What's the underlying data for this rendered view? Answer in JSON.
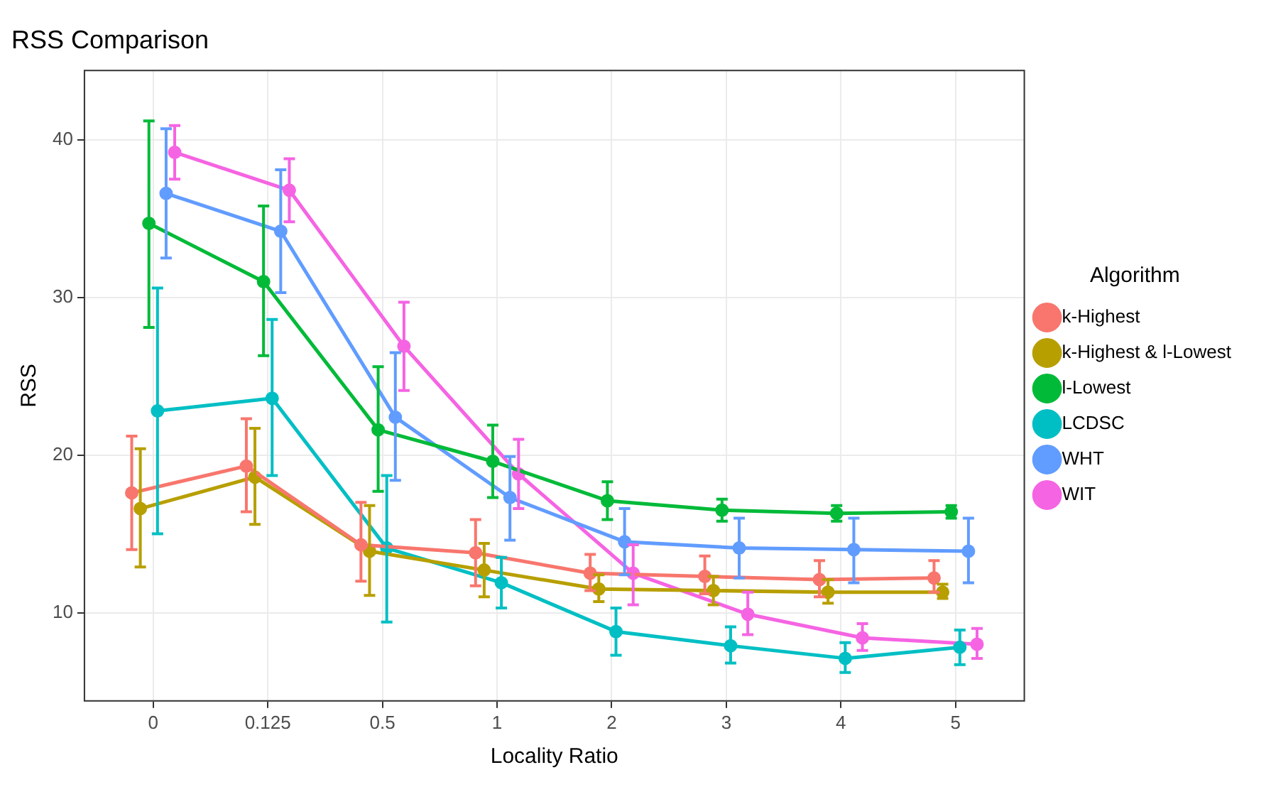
{
  "chart_data": {
    "type": "line",
    "title": "RSS Comparison",
    "xlabel": "Locality Ratio",
    "ylabel": "RSS",
    "legend_title": "Algorithm",
    "legend": "right",
    "grid": true,
    "marker": "circle",
    "line_style": "solid",
    "categories": [
      "0",
      "0.125",
      "0.5",
      "1",
      "2",
      "3",
      "4",
      "5"
    ],
    "ylim": [
      4.4,
      44.4
    ],
    "yticks": [
      10,
      20,
      30,
      40
    ],
    "series": [
      {
        "name": "k-Highest",
        "color": "#f8766d",
        "values": [
          17.6,
          19.3,
          14.3,
          13.8,
          12.5,
          12.3,
          12.1,
          12.2
        ],
        "errors": [
          [
            14.0,
            21.2
          ],
          [
            16.4,
            22.3
          ],
          [
            12.0,
            17.0
          ],
          [
            11.7,
            15.9
          ],
          [
            11.4,
            13.7
          ],
          [
            11.2,
            13.6
          ],
          [
            11.0,
            13.3
          ],
          [
            11.3,
            13.3
          ]
        ]
      },
      {
        "name": "k-Highest & l-Lowest",
        "color": "#b79f00",
        "values": [
          16.6,
          18.6,
          13.9,
          12.7,
          11.5,
          11.4,
          11.3,
          11.3
        ],
        "errors": [
          [
            12.9,
            20.4
          ],
          [
            15.6,
            21.7
          ],
          [
            11.1,
            16.8
          ],
          [
            11.0,
            14.4
          ],
          [
            10.7,
            12.4
          ],
          [
            10.5,
            12.3
          ],
          [
            10.6,
            12.1
          ],
          [
            10.9,
            11.8
          ]
        ]
      },
      {
        "name": "l-Lowest",
        "color": "#00ba38",
        "values": [
          34.7,
          31.0,
          21.6,
          19.6,
          17.1,
          16.5,
          16.3,
          16.4
        ],
        "errors": [
          [
            28.1,
            41.2
          ],
          [
            26.3,
            35.8
          ],
          [
            17.7,
            25.6
          ],
          [
            17.3,
            21.9
          ],
          [
            15.9,
            18.3
          ],
          [
            15.8,
            17.2
          ],
          [
            15.8,
            16.8
          ],
          [
            16.0,
            16.8
          ]
        ]
      },
      {
        "name": "LCDSC",
        "color": "#00bfc4",
        "values": [
          22.8,
          23.6,
          14.1,
          11.9,
          8.8,
          7.9,
          7.1,
          7.8
        ],
        "errors": [
          [
            15.0,
            30.6
          ],
          [
            18.7,
            28.6
          ],
          [
            9.4,
            18.7
          ],
          [
            10.3,
            13.5
          ],
          [
            7.3,
            10.3
          ],
          [
            6.8,
            9.1
          ],
          [
            6.2,
            8.1
          ],
          [
            6.7,
            8.9
          ]
        ]
      },
      {
        "name": "WHT",
        "color": "#619cff",
        "values": [
          36.6,
          34.2,
          22.4,
          17.3,
          14.5,
          14.1,
          14.0,
          13.9
        ],
        "errors": [
          [
            32.5,
            40.7
          ],
          [
            30.3,
            38.1
          ],
          [
            18.4,
            26.5
          ],
          [
            14.6,
            19.9
          ],
          [
            12.4,
            16.6
          ],
          [
            12.2,
            16.0
          ],
          [
            11.9,
            16.0
          ],
          [
            11.9,
            16.0
          ]
        ]
      },
      {
        "name": "WIT",
        "color": "#f564e3",
        "values": [
          39.2,
          36.8,
          26.9,
          18.8,
          12.5,
          9.9,
          8.4,
          8.0
        ],
        "errors": [
          [
            37.5,
            40.9
          ],
          [
            34.8,
            38.8
          ],
          [
            24.1,
            29.7
          ],
          [
            16.6,
            21.0
          ],
          [
            10.5,
            14.3
          ],
          [
            8.6,
            11.3
          ],
          [
            7.6,
            9.3
          ],
          [
            7.1,
            9.0
          ]
        ]
      }
    ]
  }
}
